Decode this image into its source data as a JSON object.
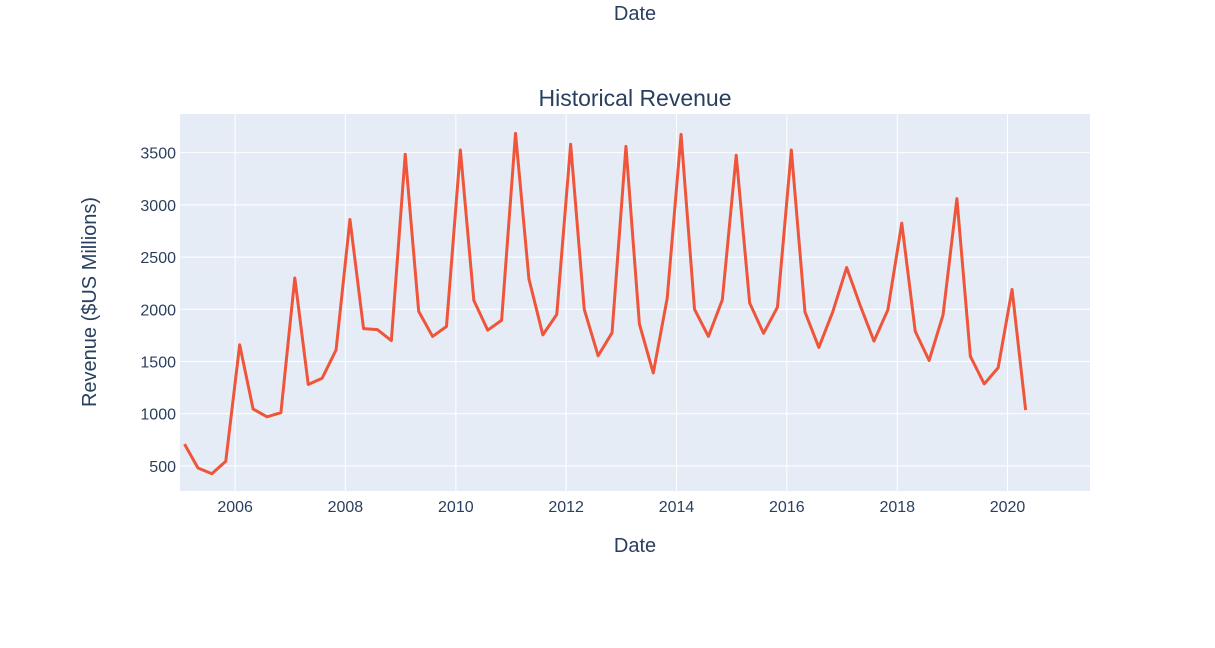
{
  "chart_data": {
    "type": "line",
    "title": "Historical Revenue",
    "xlabel": "Date",
    "xlabel_top": "Date",
    "ylabel": "Revenue ($US Millions)",
    "xlim": [
      "2005-01-01",
      "2021-06-30"
    ],
    "ylim": [
      260,
      3870
    ],
    "x_ticks": [
      "2006",
      "2008",
      "2010",
      "2012",
      "2014",
      "2016",
      "2018",
      "2020"
    ],
    "y_ticks": [
      500,
      1000,
      1500,
      2000,
      2500,
      3000,
      3500
    ],
    "grid": true,
    "legend": false,
    "colors": {
      "line": "#ef553b",
      "plot_bg": "#e5ecf6",
      "grid": "#ffffff",
      "text": "#2a3f5f"
    },
    "series": [
      {
        "x": [
          "2005-01-31",
          "2005-04-30",
          "2005-07-31",
          "2005-10-31",
          "2006-01-31",
          "2006-04-30",
          "2006-07-31",
          "2006-10-31",
          "2007-01-31",
          "2007-04-30",
          "2007-07-31",
          "2007-10-31",
          "2008-01-31",
          "2008-04-30",
          "2008-07-31",
          "2008-10-31",
          "2009-01-31",
          "2009-04-30",
          "2009-07-31",
          "2009-10-31",
          "2010-01-31",
          "2010-04-30",
          "2010-07-31",
          "2010-10-31",
          "2011-01-31",
          "2011-04-30",
          "2011-07-31",
          "2011-10-31",
          "2012-01-31",
          "2012-04-30",
          "2012-07-31",
          "2012-10-31",
          "2013-01-31",
          "2013-04-30",
          "2013-07-31",
          "2013-10-31",
          "2014-01-31",
          "2014-04-30",
          "2014-07-31",
          "2014-10-31",
          "2015-01-31",
          "2015-04-30",
          "2015-07-31",
          "2015-10-31",
          "2016-01-31",
          "2016-04-30",
          "2016-07-31",
          "2016-10-31",
          "2017-01-31",
          "2017-04-30",
          "2017-07-31",
          "2017-10-31",
          "2018-01-31",
          "2018-04-30",
          "2018-07-31",
          "2018-10-31",
          "2019-01-31",
          "2019-04-30",
          "2019-07-31",
          "2019-10-31",
          "2020-01-31",
          "2020-04-30"
        ],
        "y": [
          709,
          480,
          425,
          545,
          1660,
          1045,
          970,
          1010,
          2300,
          1280,
          1340,
          1610,
          2860,
          1815,
          1805,
          1700,
          3485,
          1980,
          1740,
          1835,
          3525,
          2085,
          1800,
          1895,
          3685,
          2290,
          1755,
          1950,
          3580,
          2000,
          1555,
          1775,
          3560,
          1860,
          1390,
          2105,
          3675,
          2000,
          1740,
          2090,
          3475,
          2060,
          1770,
          2020,
          3525,
          1975,
          1635,
          1975,
          2400,
          2040,
          1695,
          1995,
          2825,
          1790,
          1510,
          1945,
          3060,
          1550,
          1285,
          1440,
          2190,
          1035
        ]
      }
    ]
  }
}
